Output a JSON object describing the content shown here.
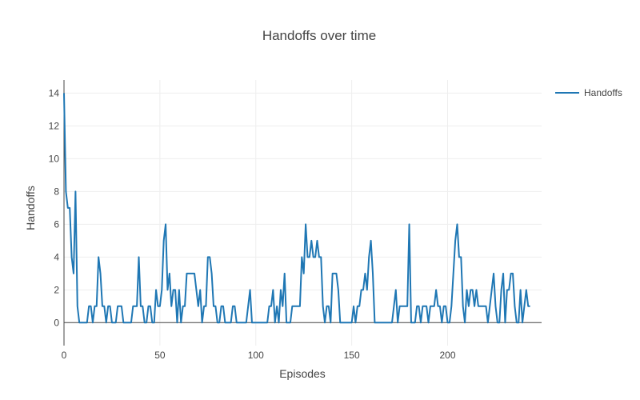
{
  "chart_data": {
    "type": "line",
    "title": "Handoffs over time",
    "xlabel": "Episodes",
    "ylabel": "Handoffs",
    "xlim": [
      0,
      249
    ],
    "ylim": [
      -1.4,
      14.8
    ],
    "x_ticks": [
      0,
      50,
      100,
      150,
      200
    ],
    "y_ticks": [
      0,
      2,
      4,
      6,
      8,
      10,
      12,
      14
    ],
    "grid": true,
    "legend_position": "top-right",
    "series": [
      {
        "name": "Handoffs",
        "color": "#1f77b4",
        "values": [
          14,
          8,
          7,
          7,
          4,
          3,
          8,
          1,
          0,
          0,
          0,
          0,
          0,
          1,
          1,
          0,
          1,
          1,
          4,
          3,
          1,
          1,
          0,
          1,
          1,
          0,
          0,
          0,
          1,
          1,
          1,
          0,
          0,
          0,
          0,
          0,
          1,
          1,
          1,
          4,
          1,
          1,
          0,
          0,
          1,
          1,
          0,
          0,
          2,
          1,
          1,
          2,
          5,
          6,
          2,
          3,
          1,
          2,
          2,
          0,
          2,
          0,
          1,
          1,
          3,
          3,
          3,
          3,
          3,
          2,
          1,
          2,
          0,
          1,
          1,
          4,
          4,
          3,
          1,
          1,
          0,
          0,
          1,
          1,
          0,
          0,
          0,
          0,
          1,
          1,
          0,
          0,
          0,
          0,
          0,
          0,
          1,
          2,
          0,
          0,
          0,
          0,
          0,
          0,
          0,
          0,
          0,
          1,
          1,
          2,
          0,
          1,
          0,
          2,
          1,
          3,
          0,
          0,
          0,
          1,
          1,
          1,
          1,
          1,
          4,
          3,
          6,
          4,
          4,
          5,
          4,
          4,
          5,
          4,
          4,
          1,
          0,
          1,
          1,
          0,
          3,
          3,
          3,
          2,
          0,
          0,
          0,
          0,
          0,
          0,
          0,
          1,
          0,
          1,
          1,
          2,
          2,
          3,
          2,
          4,
          5,
          3,
          0,
          0,
          0,
          0,
          0,
          0,
          0,
          0,
          0,
          0,
          1,
          2,
          0,
          1,
          1,
          1,
          1,
          1,
          6,
          0,
          0,
          0,
          1,
          1,
          0,
          1,
          1,
          1,
          0,
          1,
          1,
          1,
          2,
          1,
          1,
          0,
          1,
          1,
          0,
          0,
          1,
          3,
          5,
          6,
          4,
          4,
          1,
          0,
          2,
          1,
          2,
          2,
          1,
          2,
          1,
          1,
          1,
          1,
          1,
          0,
          1,
          2,
          3,
          1,
          0,
          0,
          2,
          3,
          0,
          2,
          2,
          3,
          3,
          1,
          0,
          0,
          2,
          0,
          1,
          2,
          1,
          1
        ]
      }
    ]
  }
}
